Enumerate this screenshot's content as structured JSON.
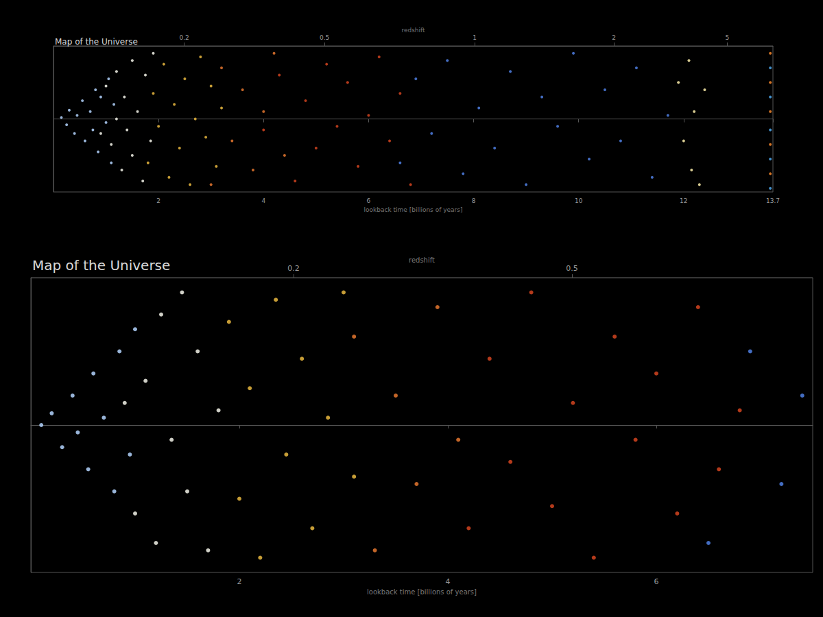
{
  "chart_data": [
    {
      "type": "scatter",
      "title": "Map of the Universe",
      "xlabel": "lookback time [billions of years]",
      "x2label": "redshift",
      "xlim": [
        0,
        13.7
      ],
      "xticks": [
        2,
        4,
        6,
        8,
        10,
        12,
        13.7
      ],
      "x2lim": [
        0,
        13.7
      ],
      "x2ticks": [
        {
          "value": 2.49,
          "label": "0.2"
        },
        {
          "value": 5.16,
          "label": "0.5"
        },
        {
          "value": 8.02,
          "label": "1"
        },
        {
          "value": 10.67,
          "label": "2"
        },
        {
          "value": 12.83,
          "label": "5"
        }
      ],
      "ylim": [
        -1,
        1
      ],
      "tick_labels": "x",
      "grid": false,
      "series": [
        {
          "color": "#a8c8f0",
          "values": [
            [
              0.15,
              0.02
            ],
            [
              0.25,
              -0.08
            ],
            [
              0.3,
              0.12
            ],
            [
              0.4,
              -0.2
            ],
            [
              0.45,
              0.05
            ],
            [
              0.55,
              0.25
            ],
            [
              0.6,
              -0.3
            ],
            [
              0.7,
              0.1
            ],
            [
              0.75,
              -0.15
            ],
            [
              0.8,
              0.4
            ],
            [
              0.85,
              -0.45
            ],
            [
              0.9,
              0.3
            ],
            [
              1.0,
              -0.05
            ],
            [
              1.05,
              0.55
            ],
            [
              1.1,
              -0.6
            ],
            [
              1.15,
              0.2
            ]
          ]
        },
        {
          "color": "#e6e6dc",
          "values": [
            [
              0.9,
              -0.2
            ],
            [
              1.0,
              0.45
            ],
            [
              1.1,
              -0.35
            ],
            [
              1.2,
              0.65
            ],
            [
              1.2,
              0.0
            ],
            [
              1.3,
              -0.7
            ],
            [
              1.35,
              0.3
            ],
            [
              1.4,
              -0.15
            ],
            [
              1.5,
              0.8
            ],
            [
              1.5,
              -0.5
            ],
            [
              1.6,
              0.1
            ],
            [
              1.7,
              -0.85
            ],
            [
              1.75,
              0.6
            ],
            [
              1.85,
              -0.3
            ],
            [
              1.9,
              0.9
            ]
          ]
        },
        {
          "color": "#dcae3c",
          "values": [
            [
              1.8,
              -0.6
            ],
            [
              1.9,
              0.35
            ],
            [
              2.0,
              -0.1
            ],
            [
              2.1,
              0.75
            ],
            [
              2.2,
              -0.8
            ],
            [
              2.3,
              0.2
            ],
            [
              2.4,
              -0.4
            ],
            [
              2.5,
              0.55
            ],
            [
              2.6,
              -0.9
            ],
            [
              2.7,
              0.0
            ],
            [
              2.8,
              0.85
            ],
            [
              2.9,
              -0.25
            ],
            [
              3.0,
              0.45
            ],
            [
              3.1,
              -0.65
            ],
            [
              3.2,
              0.15
            ]
          ]
        },
        {
          "color": "#d8702c",
          "values": [
            [
              3.0,
              -0.9
            ],
            [
              3.2,
              0.7
            ],
            [
              3.4,
              -0.3
            ],
            [
              3.6,
              0.4
            ],
            [
              3.8,
              -0.7
            ],
            [
              4.0,
              0.1
            ],
            [
              4.2,
              0.9
            ],
            [
              4.4,
              -0.5
            ]
          ]
        },
        {
          "color": "#c8401e",
          "values": [
            [
              4.0,
              -0.15
            ],
            [
              4.3,
              0.6
            ],
            [
              4.6,
              -0.85
            ],
            [
              4.8,
              0.25
            ],
            [
              5.0,
              -0.4
            ],
            [
              5.2,
              0.75
            ],
            [
              5.4,
              -0.1
            ],
            [
              5.6,
              0.5
            ],
            [
              5.8,
              -0.65
            ],
            [
              6.0,
              0.05
            ],
            [
              6.2,
              0.85
            ],
            [
              6.4,
              -0.3
            ],
            [
              6.6,
              0.35
            ],
            [
              6.8,
              -0.9
            ]
          ]
        },
        {
          "color": "#4a78d6",
          "values": [
            [
              6.6,
              -0.6
            ],
            [
              6.9,
              0.55
            ],
            [
              7.2,
              -0.2
            ],
            [
              7.5,
              0.8
            ],
            [
              7.8,
              -0.75
            ],
            [
              8.1,
              0.15
            ],
            [
              8.4,
              -0.4
            ],
            [
              8.7,
              0.65
            ],
            [
              9.0,
              -0.9
            ],
            [
              9.3,
              0.3
            ],
            [
              9.6,
              -0.1
            ],
            [
              9.9,
              0.9
            ],
            [
              10.2,
              -0.55
            ],
            [
              10.5,
              0.4
            ],
            [
              10.8,
              -0.3
            ],
            [
              11.1,
              0.7
            ],
            [
              11.4,
              -0.8
            ],
            [
              11.7,
              0.05
            ]
          ]
        },
        {
          "color": "#ede0a0",
          "values": [
            [
              11.9,
              0.5
            ],
            [
              12.0,
              -0.3
            ],
            [
              12.1,
              0.8
            ],
            [
              12.15,
              -0.7
            ],
            [
              12.2,
              0.1
            ],
            [
              12.3,
              -0.9
            ],
            [
              12.4,
              0.4
            ]
          ]
        },
        {
          "color": "#e8802a",
          "values": [
            [
              13.65,
              0.9
            ],
            [
              13.65,
              0.5
            ],
            [
              13.65,
              0.1
            ],
            [
              13.65,
              -0.35
            ],
            [
              13.65,
              -0.75
            ]
          ]
        },
        {
          "color": "#4aa0e0",
          "values": [
            [
              13.65,
              0.7
            ],
            [
              13.65,
              0.3
            ],
            [
              13.65,
              -0.15
            ],
            [
              13.65,
              -0.55
            ],
            [
              13.65,
              -0.95
            ]
          ]
        }
      ]
    },
    {
      "type": "scatter",
      "title": "Map of the Universe",
      "xlabel": "lookback time [billions of years]",
      "x2label": "redshift",
      "xlim": [
        0,
        7.5
      ],
      "xticks": [
        2,
        4,
        6
      ],
      "x2lim": [
        0,
        7.5
      ],
      "x2ticks": [
        {
          "value": 2.52,
          "label": "0.2"
        },
        {
          "value": 5.19,
          "label": "0.5"
        }
      ],
      "ylim": [
        -1,
        1
      ],
      "tick_labels": "x",
      "grid": false,
      "series": [
        {
          "color": "#a8c8f0",
          "values": [
            [
              0.1,
              0.0
            ],
            [
              0.2,
              0.08
            ],
            [
              0.3,
              -0.15
            ],
            [
              0.4,
              0.2
            ],
            [
              0.45,
              -0.05
            ],
            [
              0.55,
              -0.3
            ],
            [
              0.6,
              0.35
            ],
            [
              0.7,
              0.05
            ],
            [
              0.8,
              -0.45
            ],
            [
              0.85,
              0.5
            ],
            [
              0.95,
              -0.2
            ],
            [
              1.0,
              0.65
            ]
          ]
        },
        {
          "color": "#e6e6dc",
          "values": [
            [
              0.9,
              0.15
            ],
            [
              1.0,
              -0.6
            ],
            [
              1.1,
              0.3
            ],
            [
              1.2,
              -0.8
            ],
            [
              1.25,
              0.75
            ],
            [
              1.35,
              -0.1
            ],
            [
              1.45,
              0.9
            ],
            [
              1.5,
              -0.45
            ],
            [
              1.6,
              0.5
            ],
            [
              1.7,
              -0.85
            ],
            [
              1.8,
              0.1
            ]
          ]
        },
        {
          "color": "#dcae3c",
          "values": [
            [
              1.9,
              0.7
            ],
            [
              2.0,
              -0.5
            ],
            [
              2.1,
              0.25
            ],
            [
              2.2,
              -0.9
            ],
            [
              2.35,
              0.85
            ],
            [
              2.45,
              -0.2
            ],
            [
              2.6,
              0.45
            ],
            [
              2.7,
              -0.7
            ],
            [
              2.85,
              0.05
            ],
            [
              3.0,
              0.9
            ],
            [
              3.1,
              -0.35
            ]
          ]
        },
        {
          "color": "#d8702c",
          "values": [
            [
              3.1,
              0.6
            ],
            [
              3.3,
              -0.85
            ],
            [
              3.5,
              0.2
            ],
            [
              3.7,
              -0.4
            ],
            [
              3.9,
              0.8
            ],
            [
              4.1,
              -0.1
            ]
          ]
        },
        {
          "color": "#c8401e",
          "values": [
            [
              4.2,
              -0.7
            ],
            [
              4.4,
              0.45
            ],
            [
              4.6,
              -0.25
            ],
            [
              4.8,
              0.9
            ],
            [
              5.0,
              -0.55
            ],
            [
              5.2,
              0.15
            ],
            [
              5.4,
              -0.9
            ],
            [
              5.6,
              0.6
            ],
            [
              5.8,
              -0.1
            ],
            [
              6.0,
              0.35
            ],
            [
              6.2,
              -0.6
            ],
            [
              6.4,
              0.8
            ],
            [
              6.6,
              -0.3
            ],
            [
              6.8,
              0.1
            ]
          ]
        },
        {
          "color": "#4a78d6",
          "values": [
            [
              6.5,
              -0.8
            ],
            [
              6.9,
              0.5
            ],
            [
              7.2,
              -0.4
            ],
            [
              7.4,
              0.2
            ]
          ]
        }
      ]
    }
  ]
}
